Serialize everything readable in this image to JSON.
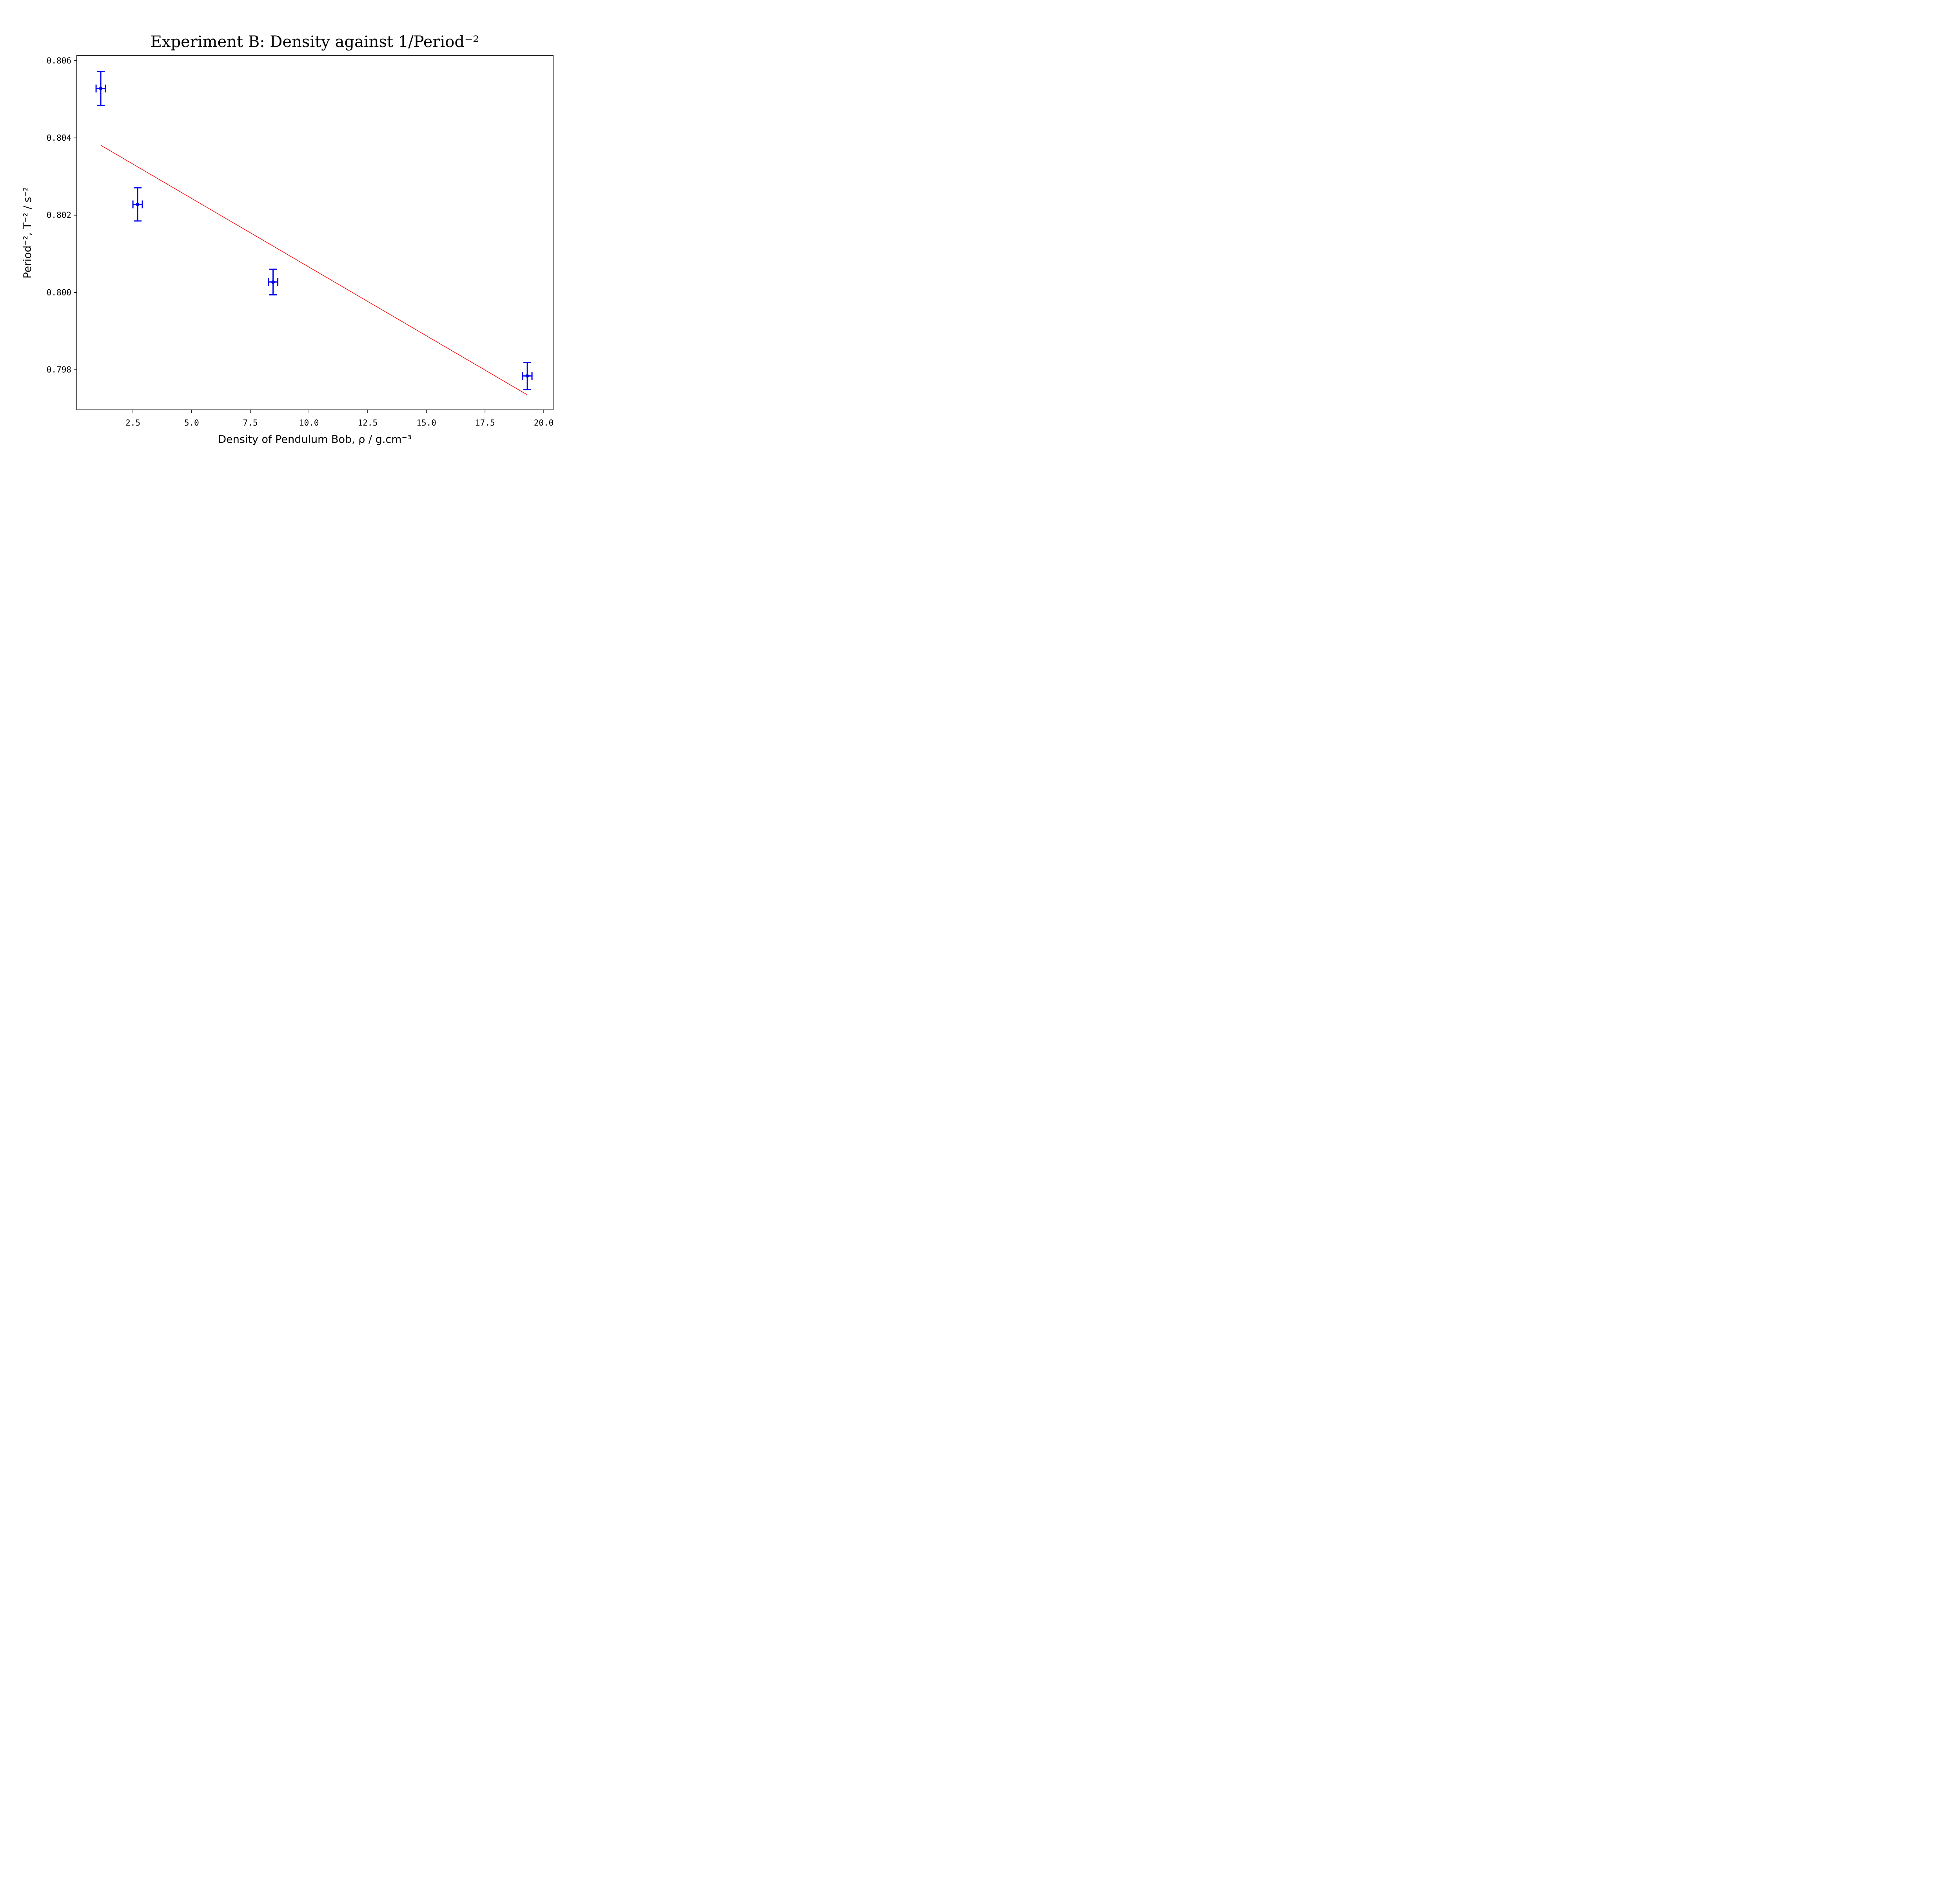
{
  "chart_data": {
    "type": "scatter",
    "title": "Experiment B: Density against 1/Period⁻²",
    "xlabel": "Density of Pendulum Bob, ρ / g.cm⁻³",
    "ylabel": "Period⁻², T⁻² / s⁻²",
    "xlim": [
      0.11,
      20.4
    ],
    "ylim": [
      0.79696,
      0.80614
    ],
    "x_ticks": [
      2.5,
      5.0,
      7.5,
      10.0,
      12.5,
      15.0,
      17.5,
      20.0
    ],
    "x_tick_labels": [
      "2.5",
      "5.0",
      "7.5",
      "10.0",
      "12.5",
      "15.0",
      "17.5",
      "20.0"
    ],
    "y_ticks": [
      0.798,
      0.8,
      0.802,
      0.804,
      0.806
    ],
    "y_tick_labels": [
      "0.798",
      "0.800",
      "0.802",
      "0.804",
      "0.806"
    ],
    "grid": false,
    "series": [
      {
        "kind": "points-with-errorbars",
        "color": "#0000ee",
        "points": [
          {
            "x": 1.13,
            "y": 0.80528,
            "xerr": 0.2,
            "yerr": 0.00044
          },
          {
            "x": 2.7,
            "y": 0.80228,
            "xerr": 0.2,
            "yerr": 0.00043
          },
          {
            "x": 8.47,
            "y": 0.80027,
            "xerr": 0.2,
            "yerr": 0.00033
          },
          {
            "x": 19.3,
            "y": 0.79784,
            "xerr": 0.2,
            "yerr": 0.00035
          }
        ]
      },
      {
        "kind": "fit-line",
        "color": "#ff0000",
        "x": [
          1.13,
          19.3
        ],
        "y": [
          0.80381,
          0.79735
        ]
      }
    ]
  }
}
